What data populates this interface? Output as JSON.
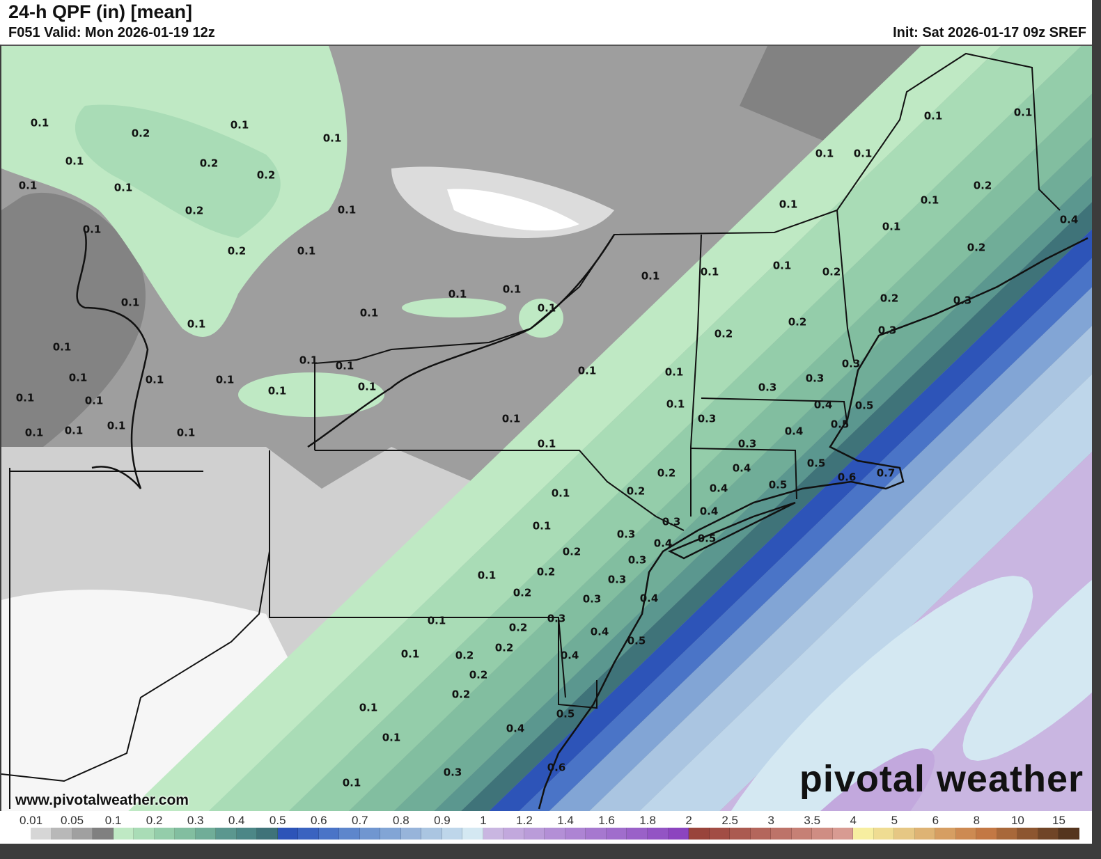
{
  "header": {
    "title": "24-h QPF (in) [mean]",
    "valid": "F051 Valid: Mon 2026-01-19 12z",
    "init": "Init: Sat 2026-01-17 09z SREF"
  },
  "map": {
    "watermark_url": "www.pivotalweather.com",
    "logo_text": "pivotal weather",
    "contour_labels": [
      "0.1",
      "0.2",
      "0.1",
      "0.1",
      "0.1",
      "0.2",
      "0.2",
      "0.1",
      "0.1",
      "0.2",
      "0.1",
      "0.1",
      "0.2",
      "0.1",
      "0.1",
      "0.1",
      "0.1",
      "0.1",
      "0.1",
      "0.1",
      "0.1",
      "0.1",
      "0.1",
      "0.1",
      "0.1",
      "0.1",
      "0.1",
      "0.1",
      "0.1",
      "0.1",
      "0.1",
      "0.1",
      "0.1",
      "0.1",
      "0.1",
      "0.1",
      "0.1",
      "0.1",
      "0.2",
      "0.1",
      "0.1",
      "0.1",
      "0.4",
      "0.2",
      "0.1",
      "0.2",
      "0.1",
      "0.1",
      "0.2",
      "0.3",
      "0.2",
      "0.3",
      "0.2",
      "0.3",
      "0.1",
      "0.1",
      "0.3",
      "0.3",
      "0.1",
      "0.4",
      "0.5",
      "0.3",
      "0.1",
      "0.4",
      "0.5",
      "0.3",
      "0.1",
      "0.4",
      "0.5",
      "0.6",
      "0.7",
      "0.2",
      "0.4",
      "0.5",
      "0.2",
      "0.1",
      "0.4",
      "0.3",
      "0.1",
      "0.3",
      "0.4",
      "0.5",
      "0.2",
      "0.3",
      "0.2",
      "0.1",
      "0.3",
      "0.2",
      "0.3",
      "0.4",
      "0.3",
      "0.1",
      "0.2",
      "0.4",
      "0.5",
      "0.2",
      "0.1",
      "0.2",
      "0.4",
      "0.2",
      "0.2",
      "0.1",
      "0.5",
      "0.1",
      "0.4",
      "0.3",
      "0.6",
      "0.1"
    ]
  },
  "legend": {
    "labels": [
      "0.01",
      "0.05",
      "0.1",
      "0.2",
      "0.3",
      "0.4",
      "0.5",
      "0.6",
      "0.7",
      "0.8",
      "0.9",
      "1",
      "1.2",
      "1.4",
      "1.6",
      "1.8",
      "2",
      "2.5",
      "3",
      "3.5",
      "4",
      "5",
      "6",
      "8",
      "10",
      "15"
    ],
    "colors": [
      "#ffffff",
      "#d6d6d6",
      "#b8b8b8",
      "#a0a0a0",
      "#808080",
      "#bfe9c4",
      "#a9dcb6",
      "#94cdaa",
      "#82bea0",
      "#70ad98",
      "#5b978f",
      "#4c8787",
      "#3f7379",
      "#2d54b8",
      "#3a63c0",
      "#4a74c7",
      "#5d86cc",
      "#7096d0",
      "#82a5d5",
      "#97b4da",
      "#aac5e1",
      "#bed6ea",
      "#d4e8f2",
      "#c9b6e1",
      "#c2a8dd",
      "#ba9cd9",
      "#b38fd6",
      "#ad84d3",
      "#a678cf",
      "#a06dcc",
      "#9a61c8",
      "#9354c4",
      "#8c44bf",
      "#99443b",
      "#a24d45",
      "#ab5a50",
      "#b4665c",
      "#bd7369",
      "#c68075",
      "#cf8d83",
      "#d89b92",
      "#f7eea0",
      "#efdc92",
      "#e6c784",
      "#deb374",
      "#d69e62",
      "#cd8a52",
      "#c37844",
      "#a8683a",
      "#8d5630",
      "#704527",
      "#55351e"
    ]
  }
}
